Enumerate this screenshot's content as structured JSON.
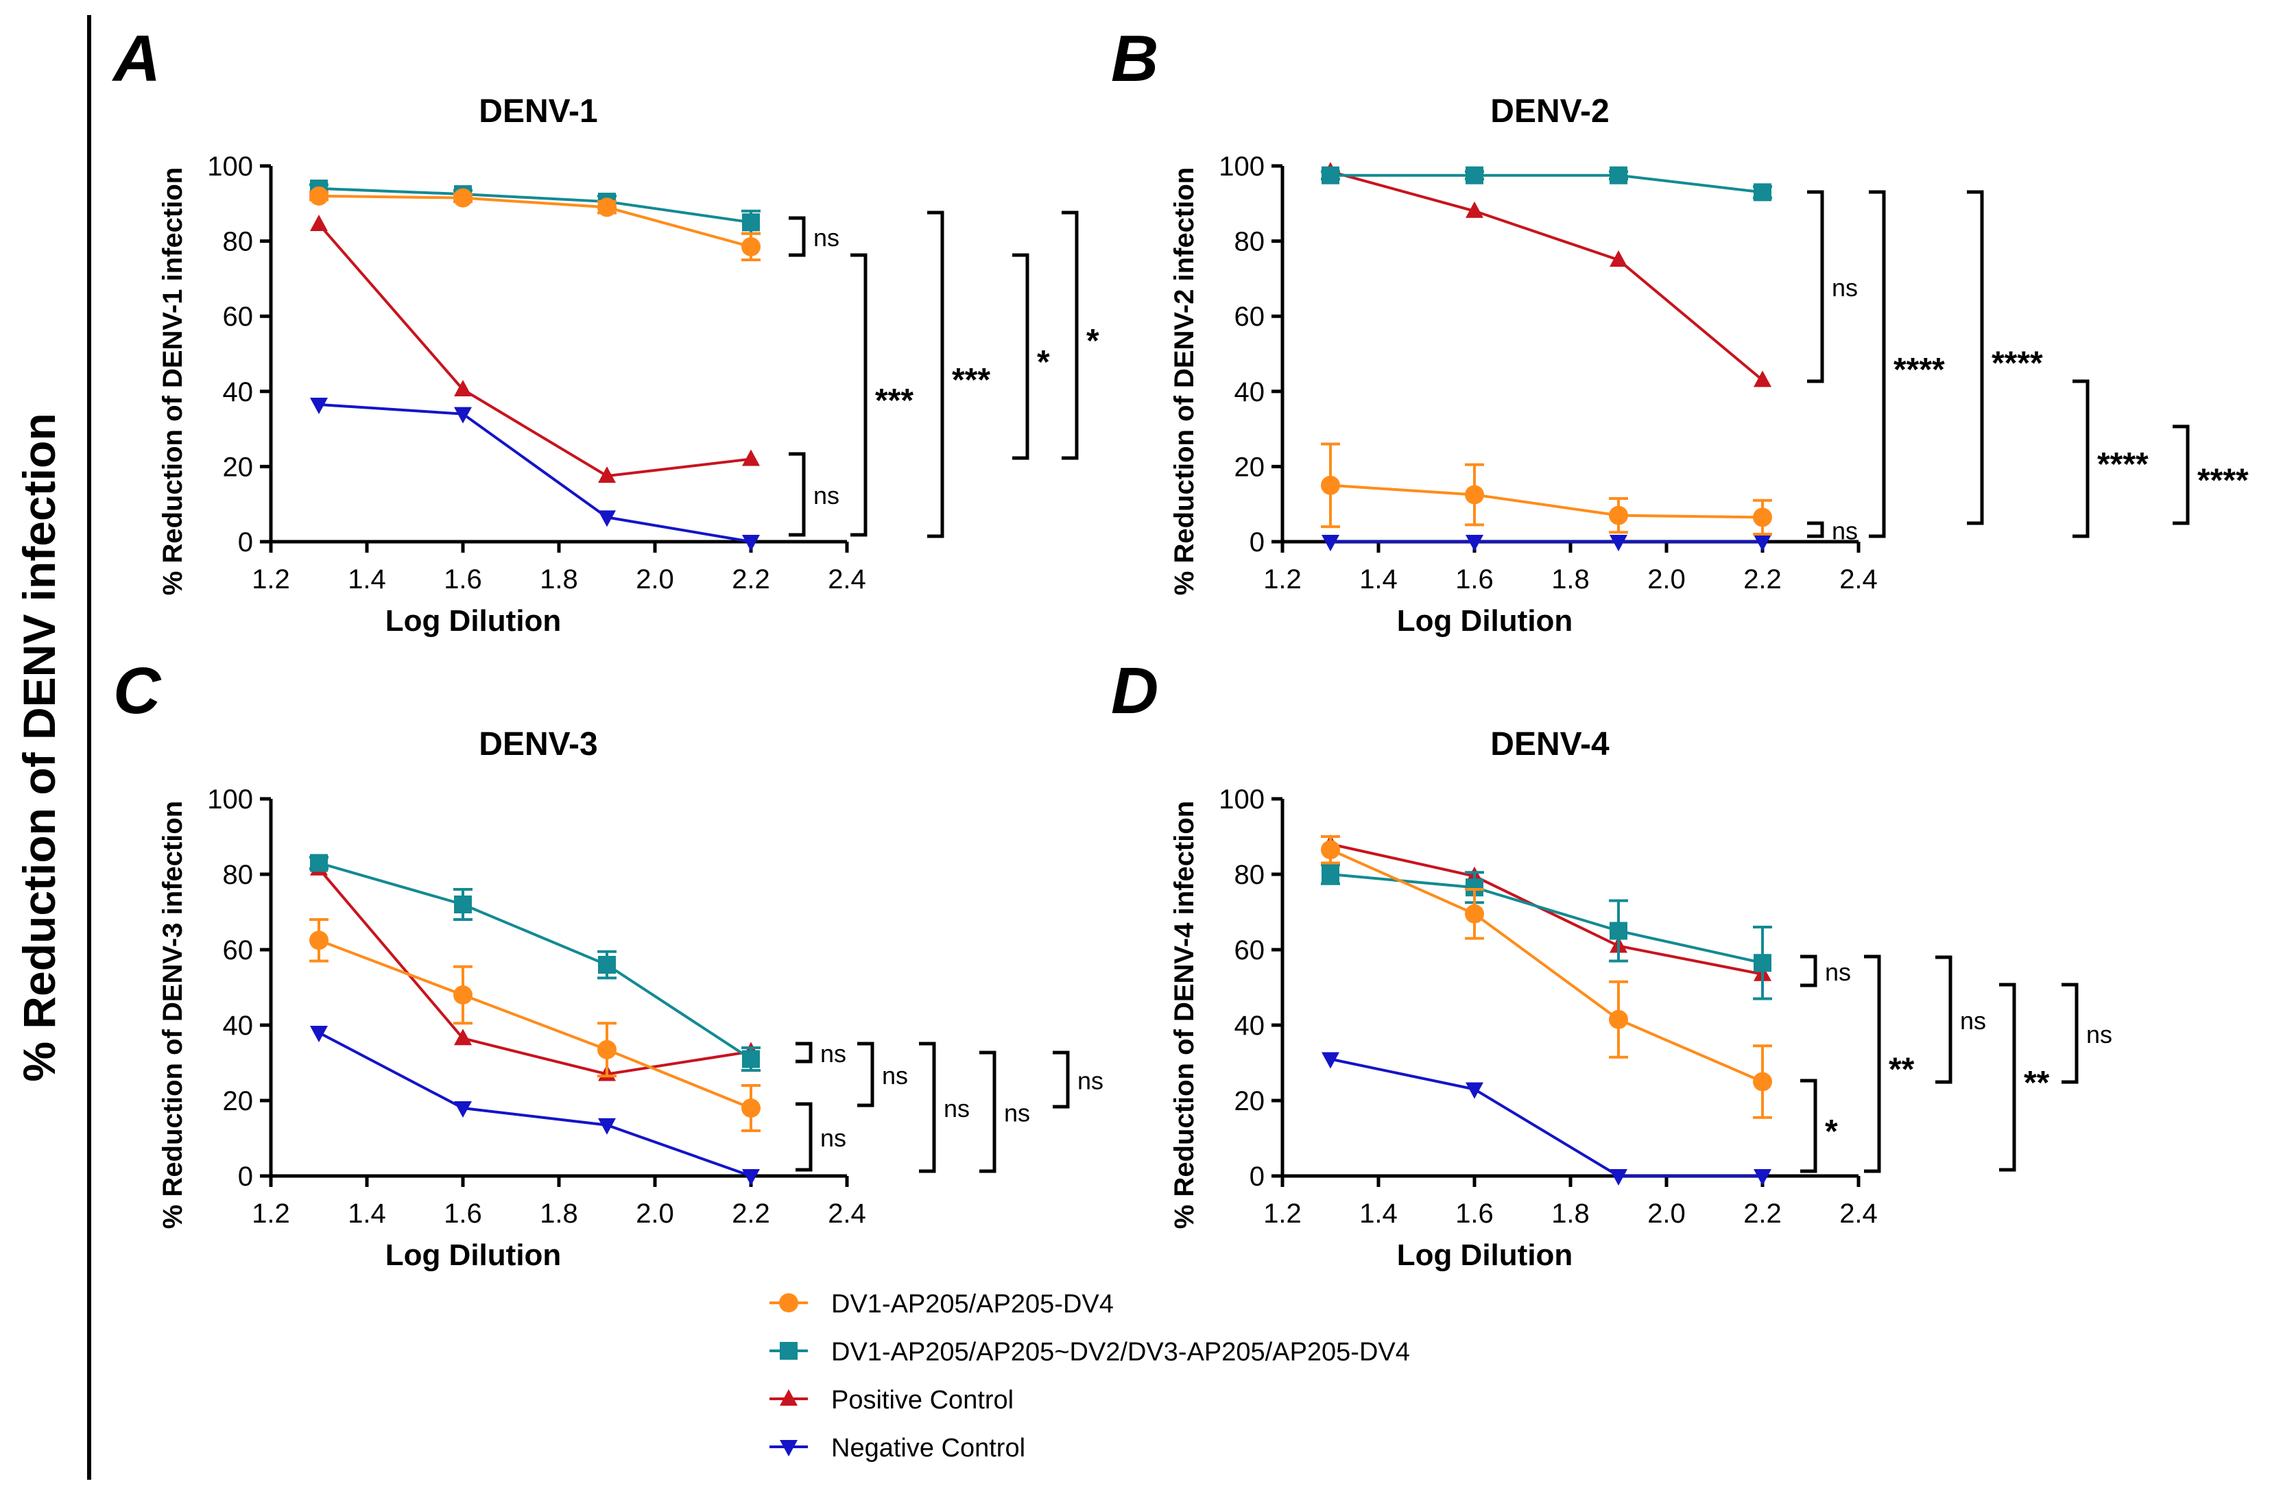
{
  "figure": {
    "shared_ylabel": "% Reduction of DENV infection",
    "colors": {
      "orange": "#FF8C1A",
      "teal": "#138A94",
      "red": "#C8141E",
      "blue": "#1414C8",
      "axis": "#000000"
    }
  },
  "legend": {
    "items": [
      {
        "label": "DV1-AP205/AP205-DV4",
        "color": "#FF8C1A",
        "marker": "circle"
      },
      {
        "label": "DV1-AP205/AP205~DV2/DV3-AP205/AP205-DV4",
        "color": "#138A94",
        "marker": "square"
      },
      {
        "label": "Positive Control",
        "color": "#C8141E",
        "marker": "triangle-up"
      },
      {
        "label": "Negative Control",
        "color": "#1414C8",
        "marker": "triangle-down"
      }
    ]
  },
  "chart_data": [
    {
      "panel": "A",
      "type": "line",
      "title": "DENV-1",
      "xlabel": "Log Dilution",
      "ylabel": "% Reduction of DENV-1 infection",
      "xlim": [
        1.2,
        2.4
      ],
      "ylim": [
        0,
        100
      ],
      "xticks": [
        "1.2",
        "1.4",
        "1.6",
        "1.8",
        "2.0",
        "2.2",
        "2.4"
      ],
      "yticks": [
        "0",
        "20",
        "40",
        "60",
        "80",
        "100"
      ],
      "x": [
        1.3,
        1.6,
        1.9,
        2.2
      ],
      "series": [
        {
          "name": "DV1-AP205/AP205-DV4",
          "values": [
            92,
            91.5,
            89,
            78.5
          ],
          "errors": [
            1,
            1,
            1.5,
            3.5
          ]
        },
        {
          "name": "DV1-AP205/AP205~DV2/DV3-AP205/AP205-DV4",
          "values": [
            94,
            92.5,
            90.5,
            85
          ],
          "errors": [
            1,
            1,
            1.5,
            3
          ]
        },
        {
          "name": "Positive Control",
          "values": [
            84.5,
            40.5,
            17.5,
            22
          ],
          "errors": [
            0,
            0,
            0,
            0
          ]
        },
        {
          "name": "Negative Control",
          "values": [
            36.5,
            34,
            6.5,
            0
          ],
          "errors": [
            0,
            0,
            0,
            0
          ]
        }
      ],
      "annotations": [
        {
          "label": "ns"
        },
        {
          "label": "ns"
        },
        {
          "label": "***"
        },
        {
          "label": "***"
        },
        {
          "label": "*"
        },
        {
          "label": "*"
        }
      ]
    },
    {
      "panel": "B",
      "type": "line",
      "title": "DENV-2",
      "xlabel": "Log Dilution",
      "ylabel": "% Reduction of DENV-2 infection",
      "xlim": [
        1.2,
        2.4
      ],
      "ylim": [
        0,
        100
      ],
      "xticks": [
        "1.2",
        "1.4",
        "1.6",
        "1.8",
        "2.0",
        "2.2",
        "2.4"
      ],
      "yticks": [
        "0",
        "20",
        "40",
        "60",
        "80",
        "100"
      ],
      "x": [
        1.3,
        1.6,
        1.9,
        2.2
      ],
      "series": [
        {
          "name": "DV1-AP205/AP205-DV4",
          "values": [
            15,
            12.5,
            7,
            6.5
          ],
          "errors": [
            11,
            8,
            4.5,
            4.5
          ]
        },
        {
          "name": "DV1-AP205/AP205~DV2/DV3-AP205/AP205-DV4",
          "values": [
            97.5,
            97.5,
            97.5,
            93
          ],
          "errors": [
            1,
            1,
            1,
            1.5
          ]
        },
        {
          "name": "Positive Control",
          "values": [
            98.5,
            88,
            75,
            43
          ],
          "errors": [
            0,
            0,
            0,
            0
          ]
        },
        {
          "name": "Negative Control",
          "values": [
            0,
            0,
            0,
            0
          ],
          "errors": [
            0,
            0,
            0,
            0
          ]
        }
      ],
      "annotations": [
        {
          "label": "ns"
        },
        {
          "label": "ns"
        },
        {
          "label": "****"
        },
        {
          "label": "****"
        },
        {
          "label": "****"
        },
        {
          "label": "****"
        }
      ]
    },
    {
      "panel": "C",
      "type": "line",
      "title": "DENV-3",
      "xlabel": "Log Dilution",
      "ylabel": "% Reduction of DENV-3 infection",
      "xlim": [
        1.2,
        2.4
      ],
      "ylim": [
        0,
        100
      ],
      "xticks": [
        "1.2",
        "1.4",
        "1.6",
        "1.8",
        "2.0",
        "2.2",
        "2.4"
      ],
      "yticks": [
        "0",
        "20",
        "40",
        "60",
        "80",
        "100"
      ],
      "x": [
        1.3,
        1.6,
        1.9,
        2.2
      ],
      "series": [
        {
          "name": "DV1-AP205/AP205-DV4",
          "values": [
            62.5,
            48,
            33.5,
            18
          ],
          "errors": [
            5.5,
            7.5,
            7,
            6
          ]
        },
        {
          "name": "DV1-AP205/AP205~DV2/DV3-AP205/AP205-DV4",
          "values": [
            83,
            72,
            56,
            31
          ],
          "errors": [
            1.5,
            4,
            3.5,
            3
          ]
        },
        {
          "name": "Positive Control",
          "values": [
            81.5,
            36.5,
            27,
            33
          ],
          "errors": [
            0,
            0,
            0,
            0
          ]
        },
        {
          "name": "Negative Control",
          "values": [
            38,
            18,
            13.5,
            0
          ],
          "errors": [
            0,
            0,
            0,
            0
          ]
        }
      ],
      "annotations": [
        {
          "label": "ns"
        },
        {
          "label": "ns"
        },
        {
          "label": "ns"
        },
        {
          "label": "ns"
        },
        {
          "label": "ns"
        },
        {
          "label": "ns"
        }
      ]
    },
    {
      "panel": "D",
      "type": "line",
      "title": "DENV-4",
      "xlabel": "Log Dilution",
      "ylabel": "% Reduction of DENV-4 infection",
      "xlim": [
        1.2,
        2.4
      ],
      "ylim": [
        0,
        100
      ],
      "xticks": [
        "1.2",
        "1.4",
        "1.6",
        "1.8",
        "2.0",
        "2.2",
        "2.4"
      ],
      "yticks": [
        "0",
        "20",
        "40",
        "60",
        "80",
        "100"
      ],
      "x": [
        1.3,
        1.6,
        1.9,
        2.2
      ],
      "series": [
        {
          "name": "DV1-AP205/AP205-DV4",
          "values": [
            86.5,
            69.5,
            41.5,
            25
          ],
          "errors": [
            3.5,
            6.5,
            10,
            9.5
          ]
        },
        {
          "name": "DV1-AP205/AP205~DV2/DV3-AP205/AP205-DV4",
          "values": [
            80,
            76.5,
            65,
            56.5
          ],
          "errors": [
            2.5,
            4,
            8,
            9.5
          ]
        },
        {
          "name": "Positive Control",
          "values": [
            88,
            79.5,
            61,
            53.5
          ],
          "errors": [
            0,
            0,
            0,
            0
          ]
        },
        {
          "name": "Negative Control",
          "values": [
            31,
            23,
            0,
            0
          ],
          "errors": [
            0,
            0,
            0,
            0
          ]
        }
      ],
      "annotations": [
        {
          "label": "ns"
        },
        {
          "label": "*"
        },
        {
          "label": "**"
        },
        {
          "label": "ns"
        },
        {
          "label": "**"
        },
        {
          "label": "ns"
        }
      ]
    }
  ]
}
